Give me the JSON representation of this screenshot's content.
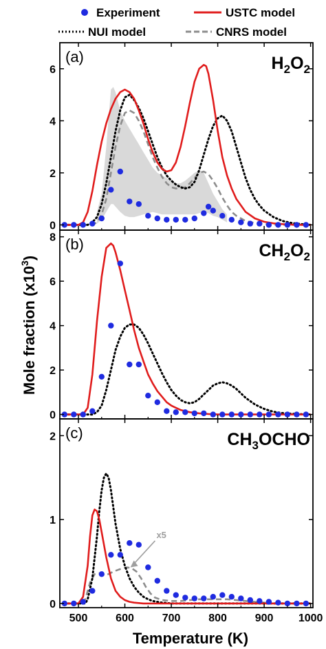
{
  "legend": [
    {
      "label": "Experiment",
      "style": "dots",
      "color": "#1f2be0"
    },
    {
      "label": "USTC model",
      "style": "solid",
      "color": "#e01c1c"
    },
    {
      "label": "NUI model",
      "style": "dotted",
      "color": "#000000"
    },
    {
      "label": "CNRS model",
      "style": "dashed",
      "color": "#8c8c8c"
    }
  ],
  "xlabel": "Temperature (K)",
  "ylabel_main": "Mole fraction (x10",
  "ylabel_sup": "3",
  "ylabel_end": ")",
  "colors": {
    "experiment": "#1f2be0",
    "ustc": "#e01c1c",
    "nui": "#000000",
    "cnrs": "#8c8c8c",
    "band": "#d9d9d9"
  },
  "chart_data": [
    {
      "type": "line",
      "panel_label": "(a)",
      "species": [
        {
          "t": "H",
          "sub": false
        },
        {
          "t": "2",
          "sub": true
        },
        {
          "t": "O",
          "sub": false
        },
        {
          "t": "2",
          "sub": true
        }
      ],
      "xlim": [
        460,
        1005
      ],
      "ylim": [
        -0.2,
        7.0
      ],
      "xticks": [
        500,
        600,
        700,
        800,
        900,
        1000
      ],
      "yticks": [
        0,
        2,
        4,
        6
      ],
      "show_xtick_labels": false,
      "series": [
        {
          "name": "Experiment",
          "kind": "dots",
          "x": [
            470,
            490,
            510,
            530,
            550,
            570,
            590,
            610,
            630,
            650,
            670,
            690,
            710,
            730,
            750,
            770,
            780,
            790,
            810,
            830,
            850,
            870,
            890,
            910,
            930,
            950,
            970,
            990
          ],
          "y": [
            0,
            0,
            0,
            0.05,
            0.25,
            1.35,
            2.05,
            0.9,
            0.8,
            0.35,
            0.25,
            0.2,
            0.2,
            0.2,
            0.25,
            0.45,
            0.7,
            0.55,
            0.35,
            0.2,
            0.1,
            0.05,
            0.05,
            0,
            0,
            0,
            0,
            0
          ]
        },
        {
          "name": "USTC model",
          "kind": "solid",
          "x": [
            470,
            500,
            510,
            520,
            530,
            540,
            550,
            560,
            570,
            580,
            590,
            600,
            610,
            620,
            630,
            640,
            650,
            660,
            670,
            680,
            690,
            700,
            710,
            720,
            730,
            740,
            750,
            760,
            770,
            775,
            780,
            790,
            800,
            810,
            820,
            830,
            840,
            860,
            880,
            900,
            920,
            940,
            960,
            980,
            1000
          ],
          "y": [
            0,
            0,
            0.1,
            0.5,
            1.3,
            2.3,
            3.2,
            3.9,
            4.45,
            4.85,
            5.1,
            5.2,
            5.1,
            4.85,
            4.4,
            3.9,
            3.3,
            2.8,
            2.4,
            2.15,
            2.05,
            2.1,
            2.4,
            3.0,
            3.8,
            4.7,
            5.5,
            6.0,
            6.15,
            6.1,
            5.8,
            4.8,
            3.6,
            2.6,
            1.9,
            1.4,
            1.0,
            0.5,
            0.25,
            0.12,
            0.06,
            0.03,
            0.01,
            0,
            0
          ]
        },
        {
          "name": "NUI model",
          "kind": "dotted",
          "x": [
            470,
            520,
            530,
            540,
            550,
            560,
            570,
            580,
            590,
            600,
            610,
            620,
            630,
            640,
            650,
            660,
            670,
            680,
            690,
            700,
            710,
            720,
            730,
            740,
            750,
            760,
            770,
            780,
            790,
            800,
            810,
            820,
            830,
            840,
            850,
            860,
            870,
            880,
            890,
            900,
            920,
            940,
            960,
            980,
            1000
          ],
          "y": [
            0,
            0,
            0.1,
            0.3,
            0.8,
            1.6,
            2.6,
            3.6,
            4.4,
            4.9,
            5.0,
            4.8,
            4.5,
            4.1,
            3.6,
            3.1,
            2.6,
            2.2,
            1.9,
            1.7,
            1.55,
            1.45,
            1.4,
            1.45,
            1.65,
            2.1,
            2.7,
            3.3,
            3.8,
            4.1,
            4.2,
            4.0,
            3.6,
            3.0,
            2.4,
            1.8,
            1.35,
            1.0,
            0.75,
            0.55,
            0.3,
            0.15,
            0.07,
            0.03,
            0
          ]
        },
        {
          "name": "CNRS model",
          "kind": "dashed",
          "x": [
            470,
            530,
            540,
            550,
            560,
            570,
            580,
            590,
            600,
            610,
            620,
            630,
            640,
            650,
            660,
            670,
            680,
            690,
            700,
            710,
            720,
            730,
            740,
            750,
            760,
            770,
            780,
            790,
            800,
            810,
            820,
            830,
            840,
            860,
            880,
            900,
            920,
            940,
            960,
            1000
          ],
          "y": [
            0,
            0,
            0.1,
            0.4,
            1.0,
            2.0,
            3.0,
            3.8,
            4.3,
            4.4,
            4.3,
            4.0,
            3.6,
            3.1,
            2.6,
            2.2,
            1.85,
            1.6,
            1.45,
            1.4,
            1.4,
            1.45,
            1.6,
            1.8,
            2.0,
            2.05,
            1.95,
            1.7,
            1.4,
            1.05,
            0.75,
            0.5,
            0.35,
            0.15,
            0.07,
            0.03,
            0.01,
            0,
            0,
            0
          ]
        },
        {
          "name": "Experimental uncertainty",
          "kind": "band",
          "x": [
            540,
            550,
            560,
            570,
            575,
            580,
            590,
            600,
            610,
            620,
            630,
            640,
            650,
            660,
            670,
            680,
            690,
            700,
            710,
            720,
            730,
            740,
            750,
            760,
            770,
            780,
            790,
            800,
            810,
            820
          ],
          "upper": [
            0.5,
            1.2,
            3.0,
            5.2,
            5.3,
            5.1,
            4.4,
            4.0,
            3.7,
            3.4,
            3.1,
            2.8,
            2.5,
            2.2,
            2.0,
            1.9,
            1.8,
            1.7,
            1.6,
            1.6,
            1.7,
            1.85,
            2.0,
            2.1,
            2.0,
            1.6,
            1.2,
            0.9,
            0.6,
            0.4
          ],
          "lower": [
            0.05,
            0.2,
            0.5,
            0.8,
            0.8,
            0.7,
            0.5,
            0.35,
            0.3,
            0.3,
            0.35,
            0.4,
            0.45,
            0.5,
            0.45,
            0.4,
            0.4,
            0.4,
            0.4,
            0.4,
            0.4,
            0.4,
            0.4,
            0.45,
            0.5,
            0.45,
            0.35,
            0.3,
            0.2,
            0.1
          ]
        }
      ]
    },
    {
      "type": "line",
      "panel_label": "(b)",
      "species": [
        {
          "t": "CH",
          "sub": false
        },
        {
          "t": "2",
          "sub": true
        },
        {
          "t": "O",
          "sub": false
        },
        {
          "t": "2",
          "sub": true
        }
      ],
      "xlim": [
        460,
        1005
      ],
      "ylim": [
        -0.2,
        8.3
      ],
      "xticks": [
        500,
        600,
        700,
        800,
        900,
        1000
      ],
      "yticks": [
        0,
        2,
        4,
        6,
        8
      ],
      "show_xtick_labels": false,
      "series": [
        {
          "name": "Experiment",
          "kind": "dots",
          "x": [
            470,
            490,
            510,
            530,
            550,
            570,
            590,
            610,
            630,
            650,
            670,
            690,
            710,
            730,
            750,
            770,
            790,
            810,
            830,
            850,
            870,
            890,
            910,
            930,
            950,
            970,
            990
          ],
          "y": [
            0,
            0,
            0,
            0.15,
            1.7,
            4.0,
            6.8,
            2.25,
            2.25,
            0.85,
            0.55,
            0.15,
            0.1,
            0.1,
            0.05,
            0.05,
            0,
            0,
            0,
            0,
            0,
            0,
            0,
            0,
            0,
            0,
            0
          ]
        },
        {
          "name": "USTC model",
          "kind": "solid",
          "x": [
            470,
            510,
            520,
            530,
            540,
            550,
            560,
            570,
            575,
            580,
            590,
            600,
            610,
            620,
            630,
            640,
            650,
            660,
            670,
            680,
            690,
            700,
            710,
            720,
            730,
            740,
            760,
            780,
            800,
            850,
            900,
            1000
          ],
          "y": [
            0,
            0,
            0.3,
            1.8,
            4.2,
            6.2,
            7.5,
            7.7,
            7.6,
            7.3,
            6.5,
            5.6,
            4.7,
            3.8,
            3.0,
            2.4,
            1.8,
            1.4,
            1.05,
            0.8,
            0.55,
            0.4,
            0.3,
            0.2,
            0.15,
            0.1,
            0.05,
            0.02,
            0,
            0,
            0,
            0
          ]
        },
        {
          "name": "NUI model",
          "kind": "dotted",
          "x": [
            470,
            530,
            540,
            550,
            560,
            570,
            580,
            590,
            600,
            610,
            620,
            630,
            640,
            650,
            660,
            670,
            680,
            690,
            700,
            710,
            720,
            730,
            740,
            750,
            760,
            770,
            780,
            790,
            800,
            810,
            820,
            830,
            840,
            850,
            860,
            870,
            880,
            890,
            900,
            920,
            940,
            960,
            980,
            1000
          ],
          "y": [
            0,
            0,
            0.1,
            0.4,
            1.1,
            2.0,
            2.9,
            3.5,
            3.9,
            4.05,
            4.05,
            3.9,
            3.6,
            3.2,
            2.75,
            2.3,
            1.85,
            1.45,
            1.1,
            0.85,
            0.65,
            0.55,
            0.5,
            0.55,
            0.7,
            0.9,
            1.1,
            1.3,
            1.4,
            1.45,
            1.4,
            1.3,
            1.15,
            0.95,
            0.75,
            0.6,
            0.45,
            0.35,
            0.25,
            0.12,
            0.06,
            0.03,
            0.01,
            0
          ]
        }
      ]
    },
    {
      "type": "line",
      "panel_label": "(c)",
      "species": [
        {
          "t": "CH",
          "sub": false
        },
        {
          "t": "3",
          "sub": true
        },
        {
          "t": "OCHO",
          "sub": false
        }
      ],
      "xlim": [
        460,
        1005
      ],
      "ylim": [
        -0.05,
        2.2
      ],
      "xticks": [
        500,
        600,
        700,
        800,
        900,
        1000
      ],
      "yticks": [
        0,
        1,
        2
      ],
      "show_xtick_labels": true,
      "annotation": {
        "text": "x5",
        "x": 668,
        "y": 0.78
      },
      "series": [
        {
          "name": "Experiment",
          "kind": "dots",
          "x": [
            470,
            490,
            510,
            530,
            550,
            570,
            590,
            610,
            630,
            650,
            670,
            690,
            710,
            730,
            750,
            770,
            790,
            810,
            830,
            850,
            870,
            890,
            910,
            930,
            950,
            970,
            990
          ],
          "y": [
            0,
            0,
            0.02,
            0.15,
            0.35,
            0.58,
            0.58,
            0.72,
            0.7,
            0.43,
            0.27,
            0.15,
            0.1,
            0.07,
            0.06,
            0.06,
            0.08,
            0.1,
            0.08,
            0.06,
            0.04,
            0.03,
            0.02,
            0.01,
            0,
            0,
            0
          ]
        },
        {
          "name": "USTC model",
          "kind": "solid",
          "x": [
            470,
            500,
            510,
            520,
            525,
            530,
            535,
            540,
            545,
            550,
            560,
            570,
            580,
            590,
            600,
            610,
            620,
            640,
            660,
            700,
            800,
            1000
          ],
          "y": [
            0,
            0,
            0.08,
            0.45,
            0.8,
            1.05,
            1.12,
            1.1,
            1.0,
            0.85,
            0.55,
            0.3,
            0.15,
            0.08,
            0.04,
            0.02,
            0.01,
            0,
            0,
            0,
            0,
            0
          ]
        },
        {
          "name": "NUI model",
          "kind": "dotted",
          "x": [
            470,
            515,
            520,
            530,
            540,
            545,
            550,
            555,
            560,
            565,
            570,
            575,
            580,
            590,
            600,
            610,
            620,
            630,
            640,
            650,
            660,
            680,
            700,
            740,
            800,
            1000
          ],
          "y": [
            0,
            0,
            0.05,
            0.3,
            0.8,
            1.1,
            1.35,
            1.5,
            1.55,
            1.5,
            1.35,
            1.15,
            0.95,
            0.65,
            0.45,
            0.3,
            0.2,
            0.13,
            0.08,
            0.05,
            0.03,
            0.01,
            0,
            0,
            0,
            0
          ]
        },
        {
          "name": "CNRS model",
          "kind": "dashed",
          "x": [
            470,
            505,
            515,
            525,
            535,
            545,
            555,
            565,
            575,
            585,
            595,
            605,
            615,
            625,
            635,
            645,
            655,
            665,
            680,
            700,
            720,
            740,
            760,
            780,
            800,
            820,
            840,
            860,
            880,
            900,
            920,
            950,
            1000
          ],
          "y": [
            0,
            0,
            0.05,
            0.25,
            0.35,
            0.36,
            0.34,
            0.35,
            0.38,
            0.4,
            0.42,
            0.43,
            0.42,
            0.38,
            0.3,
            0.2,
            0.12,
            0.07,
            0.04,
            0.03,
            0.03,
            0.04,
            0.05,
            0.05,
            0.05,
            0.05,
            0.04,
            0.03,
            0.02,
            0.01,
            0,
            0,
            0
          ]
        }
      ]
    }
  ]
}
